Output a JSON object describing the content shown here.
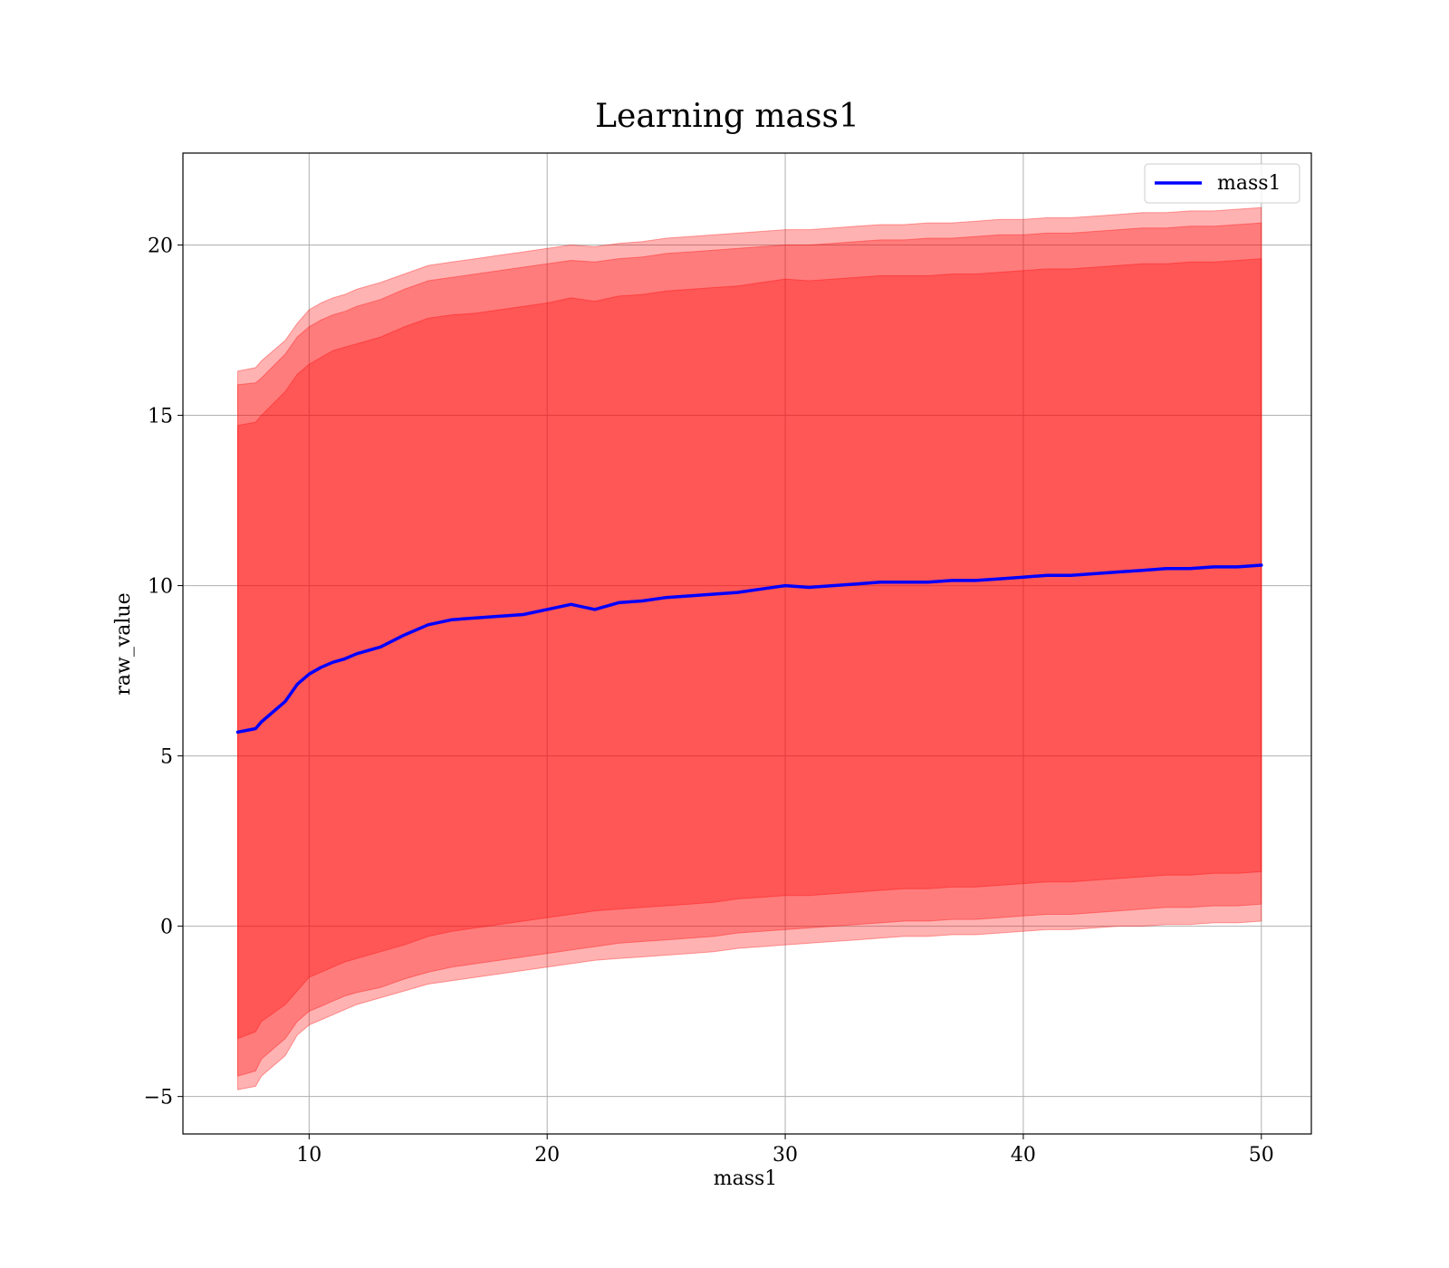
{
  "chart_data": {
    "type": "line",
    "title": "Learning mass1",
    "xlabel": "mass1",
    "ylabel": "raw_value",
    "xlim": [
      4.7,
      52.1
    ],
    "ylim": [
      -6.1,
      22.7
    ],
    "xticks": [
      10,
      20,
      30,
      40,
      50
    ],
    "yticks": [
      -5,
      0,
      5,
      10,
      15,
      20
    ],
    "xtick_labels": [
      "10",
      "20",
      "30",
      "40",
      "50"
    ],
    "ytick_labels": [
      "−5",
      "0",
      "5",
      "10",
      "15",
      "20"
    ],
    "grid": true,
    "legend": {
      "position": "top-right",
      "entries": [
        "mass1"
      ]
    },
    "colors": {
      "line": "#0000ff",
      "band": "#ff0000",
      "grid": "#b0b0b0"
    },
    "x": [
      7,
      7.75,
      8,
      9,
      9.5,
      10,
      10.5,
      11,
      11.5,
      12,
      13,
      14,
      15,
      16,
      17,
      18,
      19,
      20,
      21,
      22,
      23,
      24,
      25,
      26,
      27,
      28,
      29,
      30,
      31,
      32,
      33,
      34,
      35,
      36,
      37,
      38,
      39,
      40,
      41,
      42,
      43,
      44,
      45,
      46,
      47,
      48,
      49,
      50
    ],
    "series": [
      {
        "name": "mass1",
        "role": "mean",
        "values": [
          5.7,
          5.8,
          6.0,
          6.6,
          7.1,
          7.4,
          7.6,
          7.75,
          7.85,
          8.0,
          8.2,
          8.55,
          8.85,
          9.0,
          9.05,
          9.1,
          9.15,
          9.3,
          9.45,
          9.3,
          9.5,
          9.55,
          9.65,
          9.7,
          9.75,
          9.8,
          9.9,
          10.0,
          9.95,
          10.0,
          10.05,
          10.1,
          10.1,
          10.1,
          10.15,
          10.15,
          10.2,
          10.25,
          10.3,
          10.3,
          10.35,
          10.4,
          10.45,
          10.5,
          10.5,
          10.55,
          10.55,
          10.6
        ]
      },
      {
        "name": "",
        "role": "band",
        "lower": [
          -3.3,
          -3.1,
          -2.8,
          -2.3,
          -1.9,
          -1.5,
          -1.35,
          -1.2,
          -1.05,
          -0.95,
          -0.75,
          -0.55,
          -0.3,
          -0.15,
          -0.05,
          0.05,
          0.15,
          0.25,
          0.35,
          0.45,
          0.5,
          0.55,
          0.6,
          0.65,
          0.7,
          0.8,
          0.85,
          0.9,
          0.9,
          0.95,
          1.0,
          1.05,
          1.1,
          1.1,
          1.15,
          1.15,
          1.2,
          1.25,
          1.3,
          1.3,
          1.35,
          1.4,
          1.45,
          1.5,
          1.5,
          1.55,
          1.55,
          1.6
        ],
        "upper": [
          14.7,
          14.8,
          15.0,
          15.7,
          16.2,
          16.5,
          16.7,
          16.9,
          17.0,
          17.1,
          17.3,
          17.6,
          17.85,
          17.95,
          18.0,
          18.1,
          18.2,
          18.3,
          18.45,
          18.35,
          18.5,
          18.55,
          18.65,
          18.7,
          18.75,
          18.8,
          18.9,
          19.0,
          18.95,
          19.0,
          19.05,
          19.1,
          19.1,
          19.1,
          19.15,
          19.15,
          19.2,
          19.25,
          19.3,
          19.3,
          19.35,
          19.4,
          19.45,
          19.45,
          19.5,
          19.5,
          19.55,
          19.6
        ],
        "opacity": 0.3
      },
      {
        "name": "",
        "role": "band",
        "lower": [
          -4.4,
          -4.25,
          -3.9,
          -3.3,
          -2.8,
          -2.5,
          -2.35,
          -2.2,
          -2.05,
          -1.95,
          -1.8,
          -1.55,
          -1.35,
          -1.2,
          -1.1,
          -1.0,
          -0.9,
          -0.8,
          -0.7,
          -0.6,
          -0.5,
          -0.45,
          -0.4,
          -0.35,
          -0.3,
          -0.2,
          -0.15,
          -0.1,
          -0.05,
          0.0,
          0.05,
          0.1,
          0.15,
          0.15,
          0.2,
          0.2,
          0.25,
          0.3,
          0.35,
          0.35,
          0.4,
          0.45,
          0.5,
          0.55,
          0.55,
          0.6,
          0.6,
          0.65
        ],
        "upper": [
          15.9,
          15.95,
          16.1,
          16.8,
          17.3,
          17.6,
          17.8,
          17.95,
          18.05,
          18.2,
          18.4,
          18.7,
          18.95,
          19.05,
          19.15,
          19.25,
          19.35,
          19.45,
          19.55,
          19.5,
          19.6,
          19.65,
          19.75,
          19.8,
          19.85,
          19.9,
          19.95,
          20.0,
          20.0,
          20.05,
          20.1,
          20.15,
          20.15,
          20.2,
          20.2,
          20.25,
          20.3,
          20.3,
          20.35,
          20.35,
          20.4,
          20.45,
          20.5,
          20.5,
          20.55,
          20.55,
          20.6,
          20.65
        ],
        "opacity": 0.3
      },
      {
        "name": "",
        "role": "band",
        "lower": [
          -4.8,
          -4.7,
          -4.4,
          -3.8,
          -3.2,
          -2.9,
          -2.75,
          -2.6,
          -2.45,
          -2.3,
          -2.1,
          -1.9,
          -1.7,
          -1.6,
          -1.5,
          -1.4,
          -1.3,
          -1.2,
          -1.1,
          -1.0,
          -0.95,
          -0.9,
          -0.85,
          -0.8,
          -0.75,
          -0.65,
          -0.6,
          -0.55,
          -0.5,
          -0.45,
          -0.4,
          -0.35,
          -0.3,
          -0.3,
          -0.25,
          -0.25,
          -0.2,
          -0.15,
          -0.1,
          -0.1,
          -0.05,
          0.0,
          0.0,
          0.05,
          0.05,
          0.1,
          0.1,
          0.15
        ],
        "upper": [
          16.3,
          16.4,
          16.6,
          17.2,
          17.7,
          18.1,
          18.3,
          18.45,
          18.55,
          18.7,
          18.9,
          19.15,
          19.4,
          19.5,
          19.6,
          19.7,
          19.8,
          19.9,
          20.0,
          19.95,
          20.05,
          20.1,
          20.2,
          20.25,
          20.3,
          20.35,
          20.4,
          20.45,
          20.45,
          20.5,
          20.55,
          20.6,
          20.6,
          20.65,
          20.65,
          20.7,
          20.75,
          20.75,
          20.8,
          20.8,
          20.85,
          20.9,
          20.95,
          20.95,
          21.0,
          21.0,
          21.05,
          21.1
        ],
        "opacity": 0.3
      }
    ]
  }
}
